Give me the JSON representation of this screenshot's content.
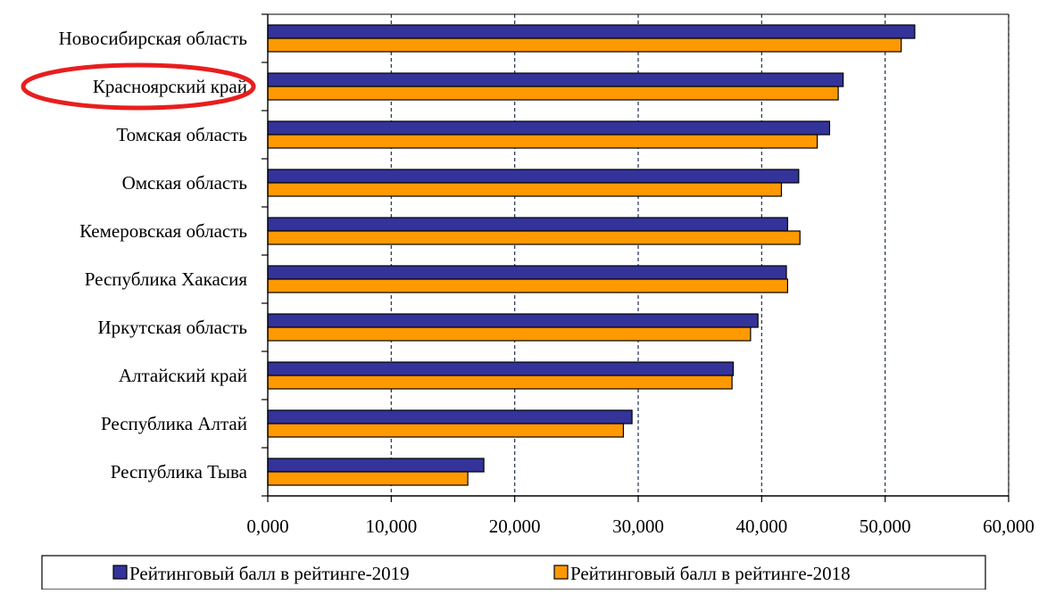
{
  "chart_data": {
    "type": "bar",
    "orientation": "horizontal",
    "categories": [
      "Новосибирская область",
      "Красноярский край",
      "Томская область",
      "Омская область",
      "Кемеровская область",
      "Республика Хакасия",
      "Иркутская область",
      "Алтайский край",
      "Республика Алтай",
      "Республика Тыва"
    ],
    "series": [
      {
        "name": "Рейтинговый балл в рейтинге-2019",
        "color": "#33339a",
        "values": [
          52.4,
          46.6,
          45.5,
          43.0,
          42.1,
          42.0,
          39.7,
          37.7,
          29.5,
          17.5
        ]
      },
      {
        "name": "Рейтинговый балл в рейтинге-2018",
        "color": "#ff9900",
        "values": [
          51.3,
          46.2,
          44.5,
          41.6,
          43.1,
          42.1,
          39.1,
          37.6,
          28.8,
          16.2
        ]
      }
    ],
    "xlim": [
      0,
      60
    ],
    "xticks": [
      "0,000",
      "10,000",
      "20,000",
      "30,000",
      "40,000",
      "50,000",
      "60,000"
    ],
    "grid": "vertical dashed",
    "legend": "bottom",
    "highlighted_category": "Красноярский край",
    "highlight_color": "#e81e1e"
  }
}
